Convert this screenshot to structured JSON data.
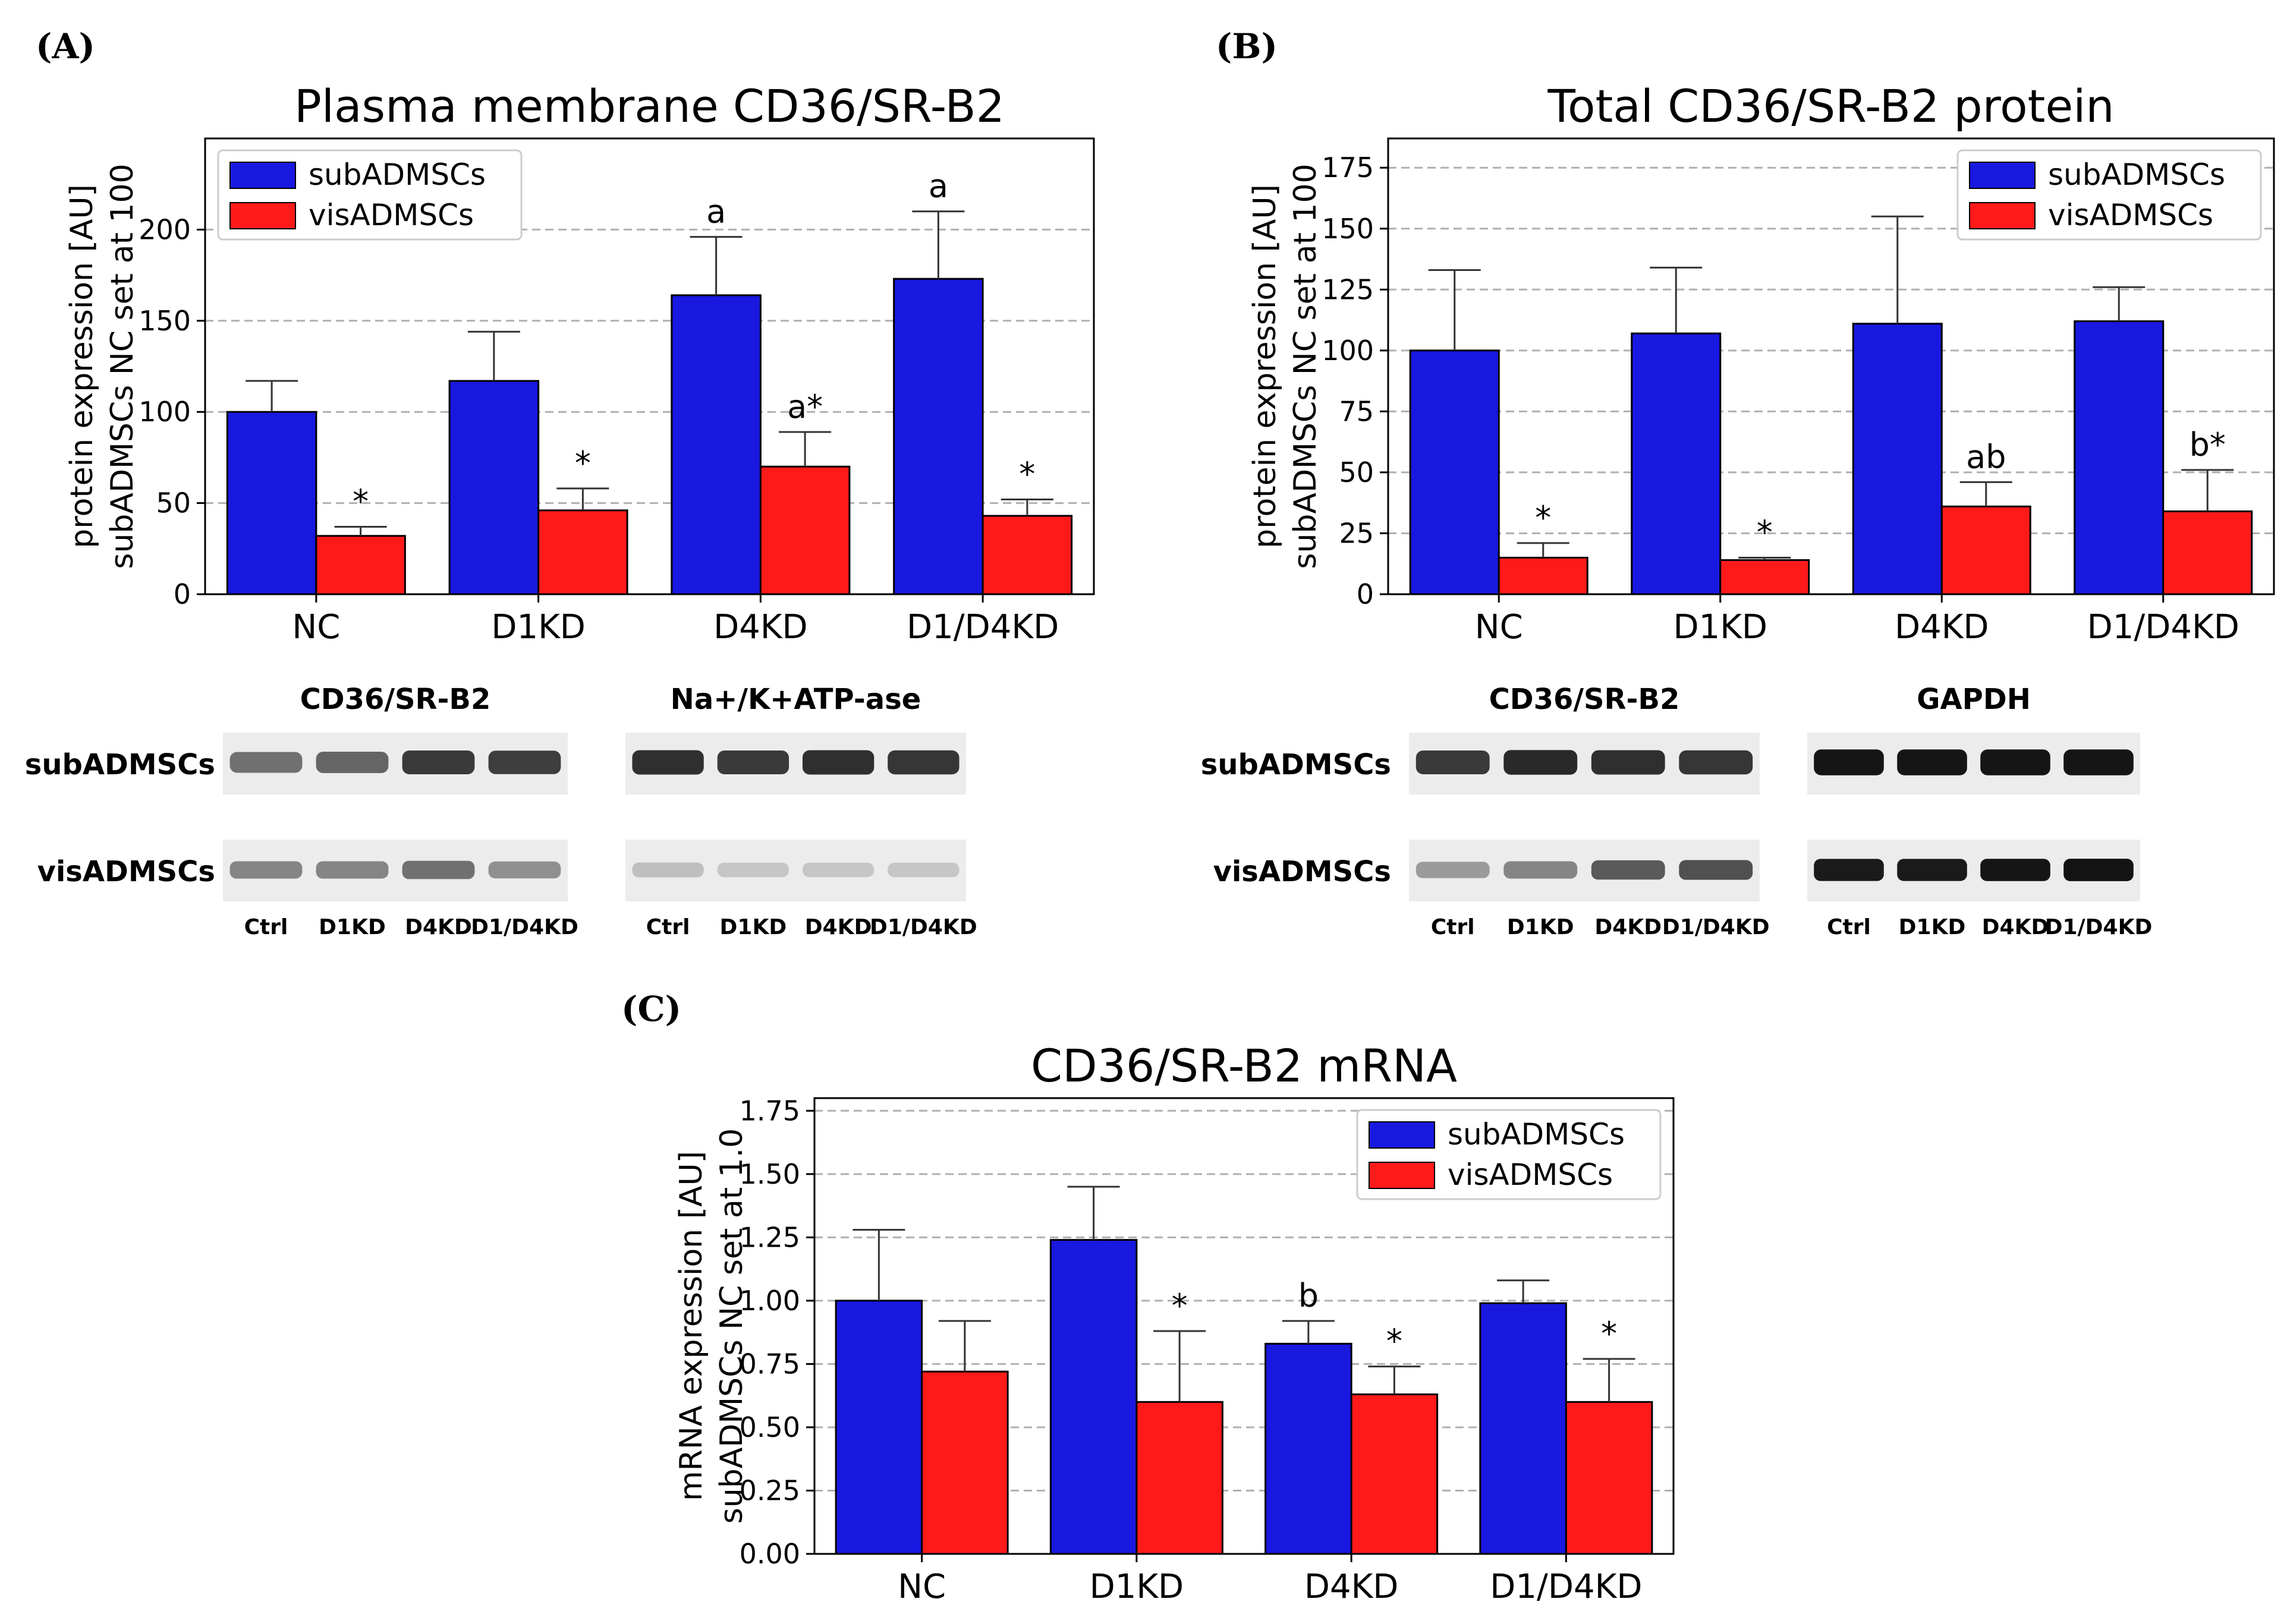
{
  "colors": {
    "sub": "#1818e0",
    "vis": "#ff1a1a",
    "grid": "#b0b0b0",
    "axis": "#000000"
  },
  "panel_labels": [
    "(A)",
    "(B)",
    "(C)"
  ],
  "chart_data": [
    {
      "id": "A",
      "type": "bar",
      "title": "Plasma membrane CD36/SR-B2",
      "ylabel_lines": [
        "protein expression [AU]",
        "subADMSCs NC set at 100"
      ],
      "categories": [
        "NC",
        "D1KD",
        "D4KD",
        "D1/D4KD"
      ],
      "ylim": [
        0,
        250
      ],
      "yticks": [
        0,
        50,
        100,
        150,
        200
      ],
      "ytick_labels": [
        "0",
        "50",
        "100",
        "150",
        "200"
      ],
      "grid": true,
      "legend": "top-left",
      "series": [
        {
          "name": "subADMSCs",
          "values": [
            100,
            117,
            164,
            173
          ],
          "errors": [
            17,
            27,
            32,
            37
          ],
          "annotations": [
            "",
            "",
            "a",
            "a"
          ]
        },
        {
          "name": "visADMSCs",
          "values": [
            32,
            46,
            70,
            43
          ],
          "errors": [
            5,
            12,
            19,
            9
          ],
          "annotations": [
            "*",
            "*",
            "a*",
            "*"
          ]
        }
      ]
    },
    {
      "id": "B",
      "type": "bar",
      "title": "Total CD36/SR-B2 protein",
      "ylabel_lines": [
        "protein expression [AU]",
        "subADMSCs NC set at 100"
      ],
      "categories": [
        "NC",
        "D1KD",
        "D4KD",
        "D1/D4KD"
      ],
      "ylim": [
        0,
        187
      ],
      "yticks": [
        0,
        25,
        50,
        75,
        100,
        125,
        150,
        175
      ],
      "ytick_labels": [
        "0",
        "25",
        "50",
        "75",
        "100",
        "125",
        "150",
        "175"
      ],
      "grid": true,
      "legend": "top-right",
      "series": [
        {
          "name": "subADMSCs",
          "values": [
            100,
            107,
            111,
            112
          ],
          "errors": [
            33,
            27,
            44,
            14
          ],
          "annotations": [
            "",
            "",
            "",
            ""
          ]
        },
        {
          "name": "visADMSCs",
          "values": [
            15,
            14,
            36,
            34
          ],
          "errors": [
            6,
            1,
            10,
            17
          ],
          "annotations": [
            "*",
            "*",
            "ab",
            "b*"
          ]
        }
      ]
    },
    {
      "id": "C",
      "type": "bar",
      "title": "CD36/SR-B2 mRNA",
      "ylabel_lines": [
        "mRNA expression [AU]",
        "subADMSCs NC set at 1.0"
      ],
      "categories": [
        "NC",
        "D1KD",
        "D4KD",
        "D1/D4KD"
      ],
      "ylim": [
        0,
        1.8
      ],
      "yticks": [
        0,
        0.25,
        0.5,
        0.75,
        1.0,
        1.25,
        1.5,
        1.75
      ],
      "ytick_labels": [
        "0.00",
        "0.25",
        "0.50",
        "0.75",
        "1.00",
        "1.25",
        "1.50",
        "1.75"
      ],
      "grid": true,
      "legend": "top-right",
      "series": [
        {
          "name": "subADMSCs",
          "values": [
            1.0,
            1.24,
            0.83,
            0.99
          ],
          "errors": [
            0.28,
            0.21,
            0.09,
            0.09
          ],
          "annotations": [
            "",
            "",
            "b",
            ""
          ]
        },
        {
          "name": "visADMSCs",
          "values": [
            0.72,
            0.6,
            0.63,
            0.6
          ],
          "errors": [
            0.2,
            0.28,
            0.11,
            0.17
          ],
          "annotations": [
            "",
            "*",
            "*",
            "*"
          ]
        }
      ]
    }
  ],
  "blots": [
    {
      "panel": "A",
      "row_labels": [
        "subADMSCs",
        "visADMSCs"
      ],
      "groups": [
        {
          "title": "CD36/SR-B2",
          "lanes": [
            "Ctrl",
            "D1KD",
            "D4KD",
            "D1/D4KD"
          ],
          "sub_intensity": [
            0.55,
            0.6,
            0.8,
            0.78
          ],
          "vis_intensity": [
            0.45,
            0.45,
            0.55,
            0.4
          ]
        },
        {
          "title": "Na+/K+ATP-ase",
          "lanes": [
            "Ctrl",
            "D1KD",
            "D4KD",
            "D1/D4KD"
          ],
          "sub_intensity": [
            0.85,
            0.8,
            0.85,
            0.82
          ],
          "vis_intensity": [
            0.18,
            0.15,
            0.15,
            0.15
          ]
        }
      ]
    },
    {
      "panel": "B",
      "row_labels": [
        "subADMSCs",
        "visADMSCs"
      ],
      "groups": [
        {
          "title": "CD36/SR-B2",
          "lanes": [
            "Ctrl",
            "D1KD",
            "D4KD",
            "D1/D4KD"
          ],
          "sub_intensity": [
            0.8,
            0.88,
            0.85,
            0.82
          ],
          "vis_intensity": [
            0.35,
            0.45,
            0.65,
            0.7
          ]
        },
        {
          "title": "GAPDH",
          "lanes": [
            "Ctrl",
            "D1KD",
            "D4KD",
            "D1/D4KD"
          ],
          "sub_intensity": [
            0.97,
            0.97,
            0.97,
            0.97
          ],
          "vis_intensity": [
            0.95,
            0.95,
            0.97,
            0.98
          ]
        }
      ]
    }
  ]
}
